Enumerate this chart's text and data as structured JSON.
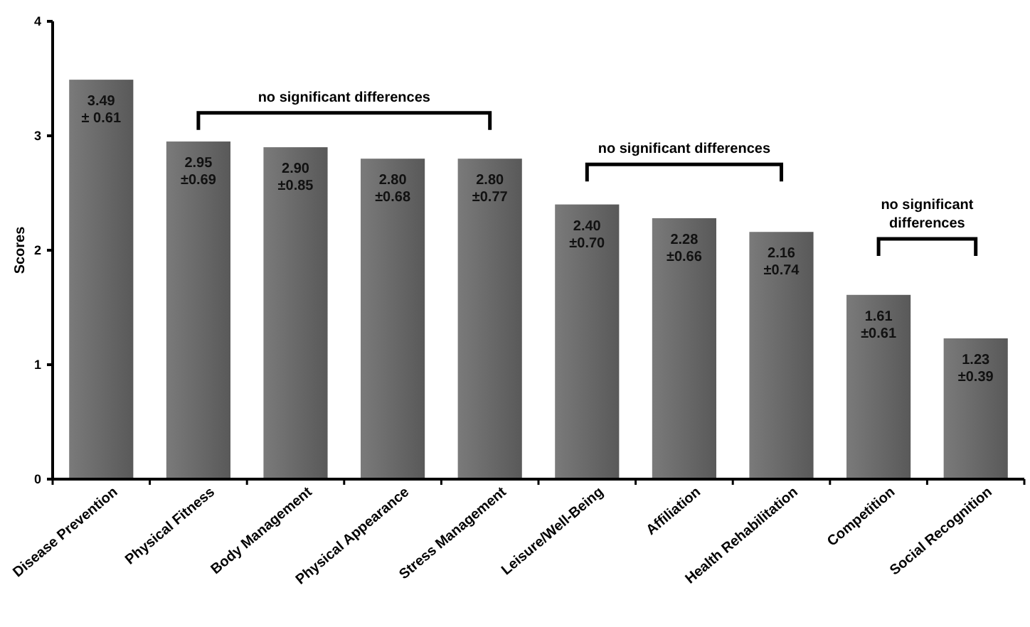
{
  "chart_data": {
    "type": "bar",
    "ylabel": "Scores",
    "categories": [
      "Disease Prevention",
      "Physical Fitness",
      "Body Management",
      "Physical Appearance",
      "Stress Management",
      "Leisure/Well-Being",
      "Affiliation",
      "Health Rehabilitation",
      "Competition",
      "Social Recognition"
    ],
    "values": [
      3.49,
      2.95,
      2.9,
      2.8,
      2.8,
      2.4,
      2.28,
      2.16,
      1.61,
      1.23
    ],
    "value_labels": [
      "3.49\n± 0.61",
      "2.95\n±0.69",
      "2.90\n±0.85",
      "2.80\n±0.68",
      "2.80\n±0.77",
      "2.40\n±0.70",
      "2.28\n±0.66",
      "2.16\n±0.74",
      "1.61\n±0.61",
      "1.23\n±0.39"
    ],
    "color": "#6e6e6e",
    "ylim": [
      0,
      4
    ],
    "yticks": [
      0,
      1,
      2,
      3,
      4
    ],
    "grid": false,
    "annotations": [
      "no significant differences",
      "no significant differences",
      "no significant\ndifferences"
    ]
  }
}
